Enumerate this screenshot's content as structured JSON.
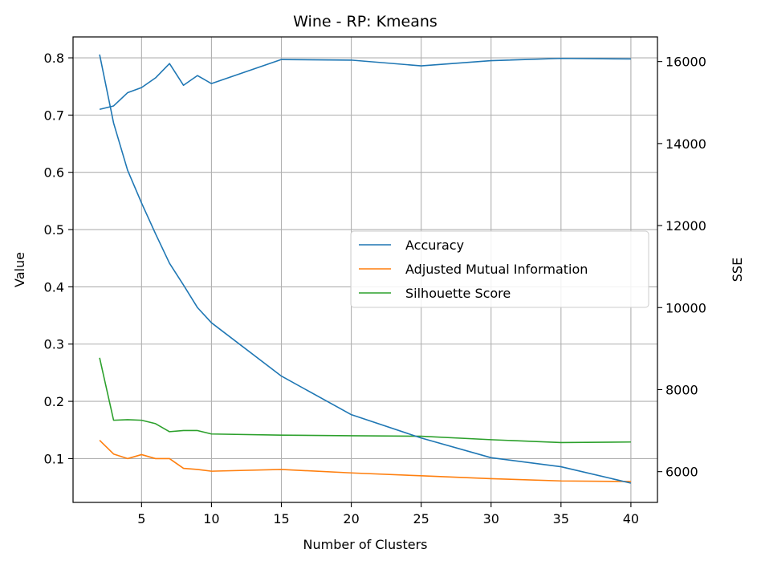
{
  "chart_data": {
    "type": "line",
    "title": "Wine - RP: Kmeans",
    "xlabel": "Number of Clusters",
    "ylabel": "Value",
    "y2label": "SSE",
    "xlim": [
      0.1,
      41.9
    ],
    "ylim": [
      0.0235,
      0.8365
    ],
    "y2lim": [
      5250,
      16600
    ],
    "x_ticks": [
      5,
      10,
      15,
      20,
      25,
      30,
      35,
      40
    ],
    "y_ticks": [
      0.1,
      0.2,
      0.3,
      0.4,
      0.5,
      0.6,
      0.7,
      0.8
    ],
    "y2_ticks": [
      6000,
      8000,
      10000,
      12000,
      14000,
      16000
    ],
    "grid": true,
    "legend_position": "center-right",
    "series": [
      {
        "name": "Accuracy",
        "axis": "left",
        "color": "#1f77b4",
        "x": [
          2,
          3,
          4,
          5,
          6,
          7,
          8,
          9,
          10,
          15,
          20,
          25,
          30,
          35,
          40
        ],
        "values": [
          0.71,
          0.716,
          0.739,
          0.748,
          0.765,
          0.79,
          0.752,
          0.769,
          0.755,
          0.797,
          0.796,
          0.786,
          0.795,
          0.799,
          0.798
        ]
      },
      {
        "name": "Adjusted Mutual Information",
        "axis": "left",
        "color": "#ff7f0e",
        "x": [
          2,
          3,
          4,
          5,
          6,
          7,
          8,
          9,
          10,
          15,
          20,
          25,
          30,
          35,
          40
        ],
        "values": [
          0.132,
          0.108,
          0.1,
          0.107,
          0.1,
          0.1,
          0.083,
          0.081,
          0.078,
          0.081,
          0.075,
          0.07,
          0.065,
          0.061,
          0.06
        ]
      },
      {
        "name": "Silhouette Score",
        "axis": "left",
        "color": "#2ca02c",
        "x": [
          2,
          3,
          4,
          5,
          6,
          7,
          8,
          9,
          10,
          15,
          20,
          25,
          30,
          35,
          40
        ],
        "values": [
          0.276,
          0.167,
          0.168,
          0.167,
          0.161,
          0.147,
          0.149,
          0.149,
          0.143,
          0.141,
          0.14,
          0.139,
          0.133,
          0.128,
          0.129
        ]
      },
      {
        "axis": "right",
        "color": "#1f77b4",
        "x": [
          2,
          3,
          4,
          5,
          6,
          7,
          8,
          9,
          10,
          15,
          20,
          25,
          30,
          35,
          40
        ],
        "values": [
          16170,
          14500,
          13350,
          12550,
          11800,
          11080,
          10550,
          10000,
          9630,
          8330,
          7390,
          6820,
          6340,
          6120,
          5720
        ]
      }
    ]
  }
}
